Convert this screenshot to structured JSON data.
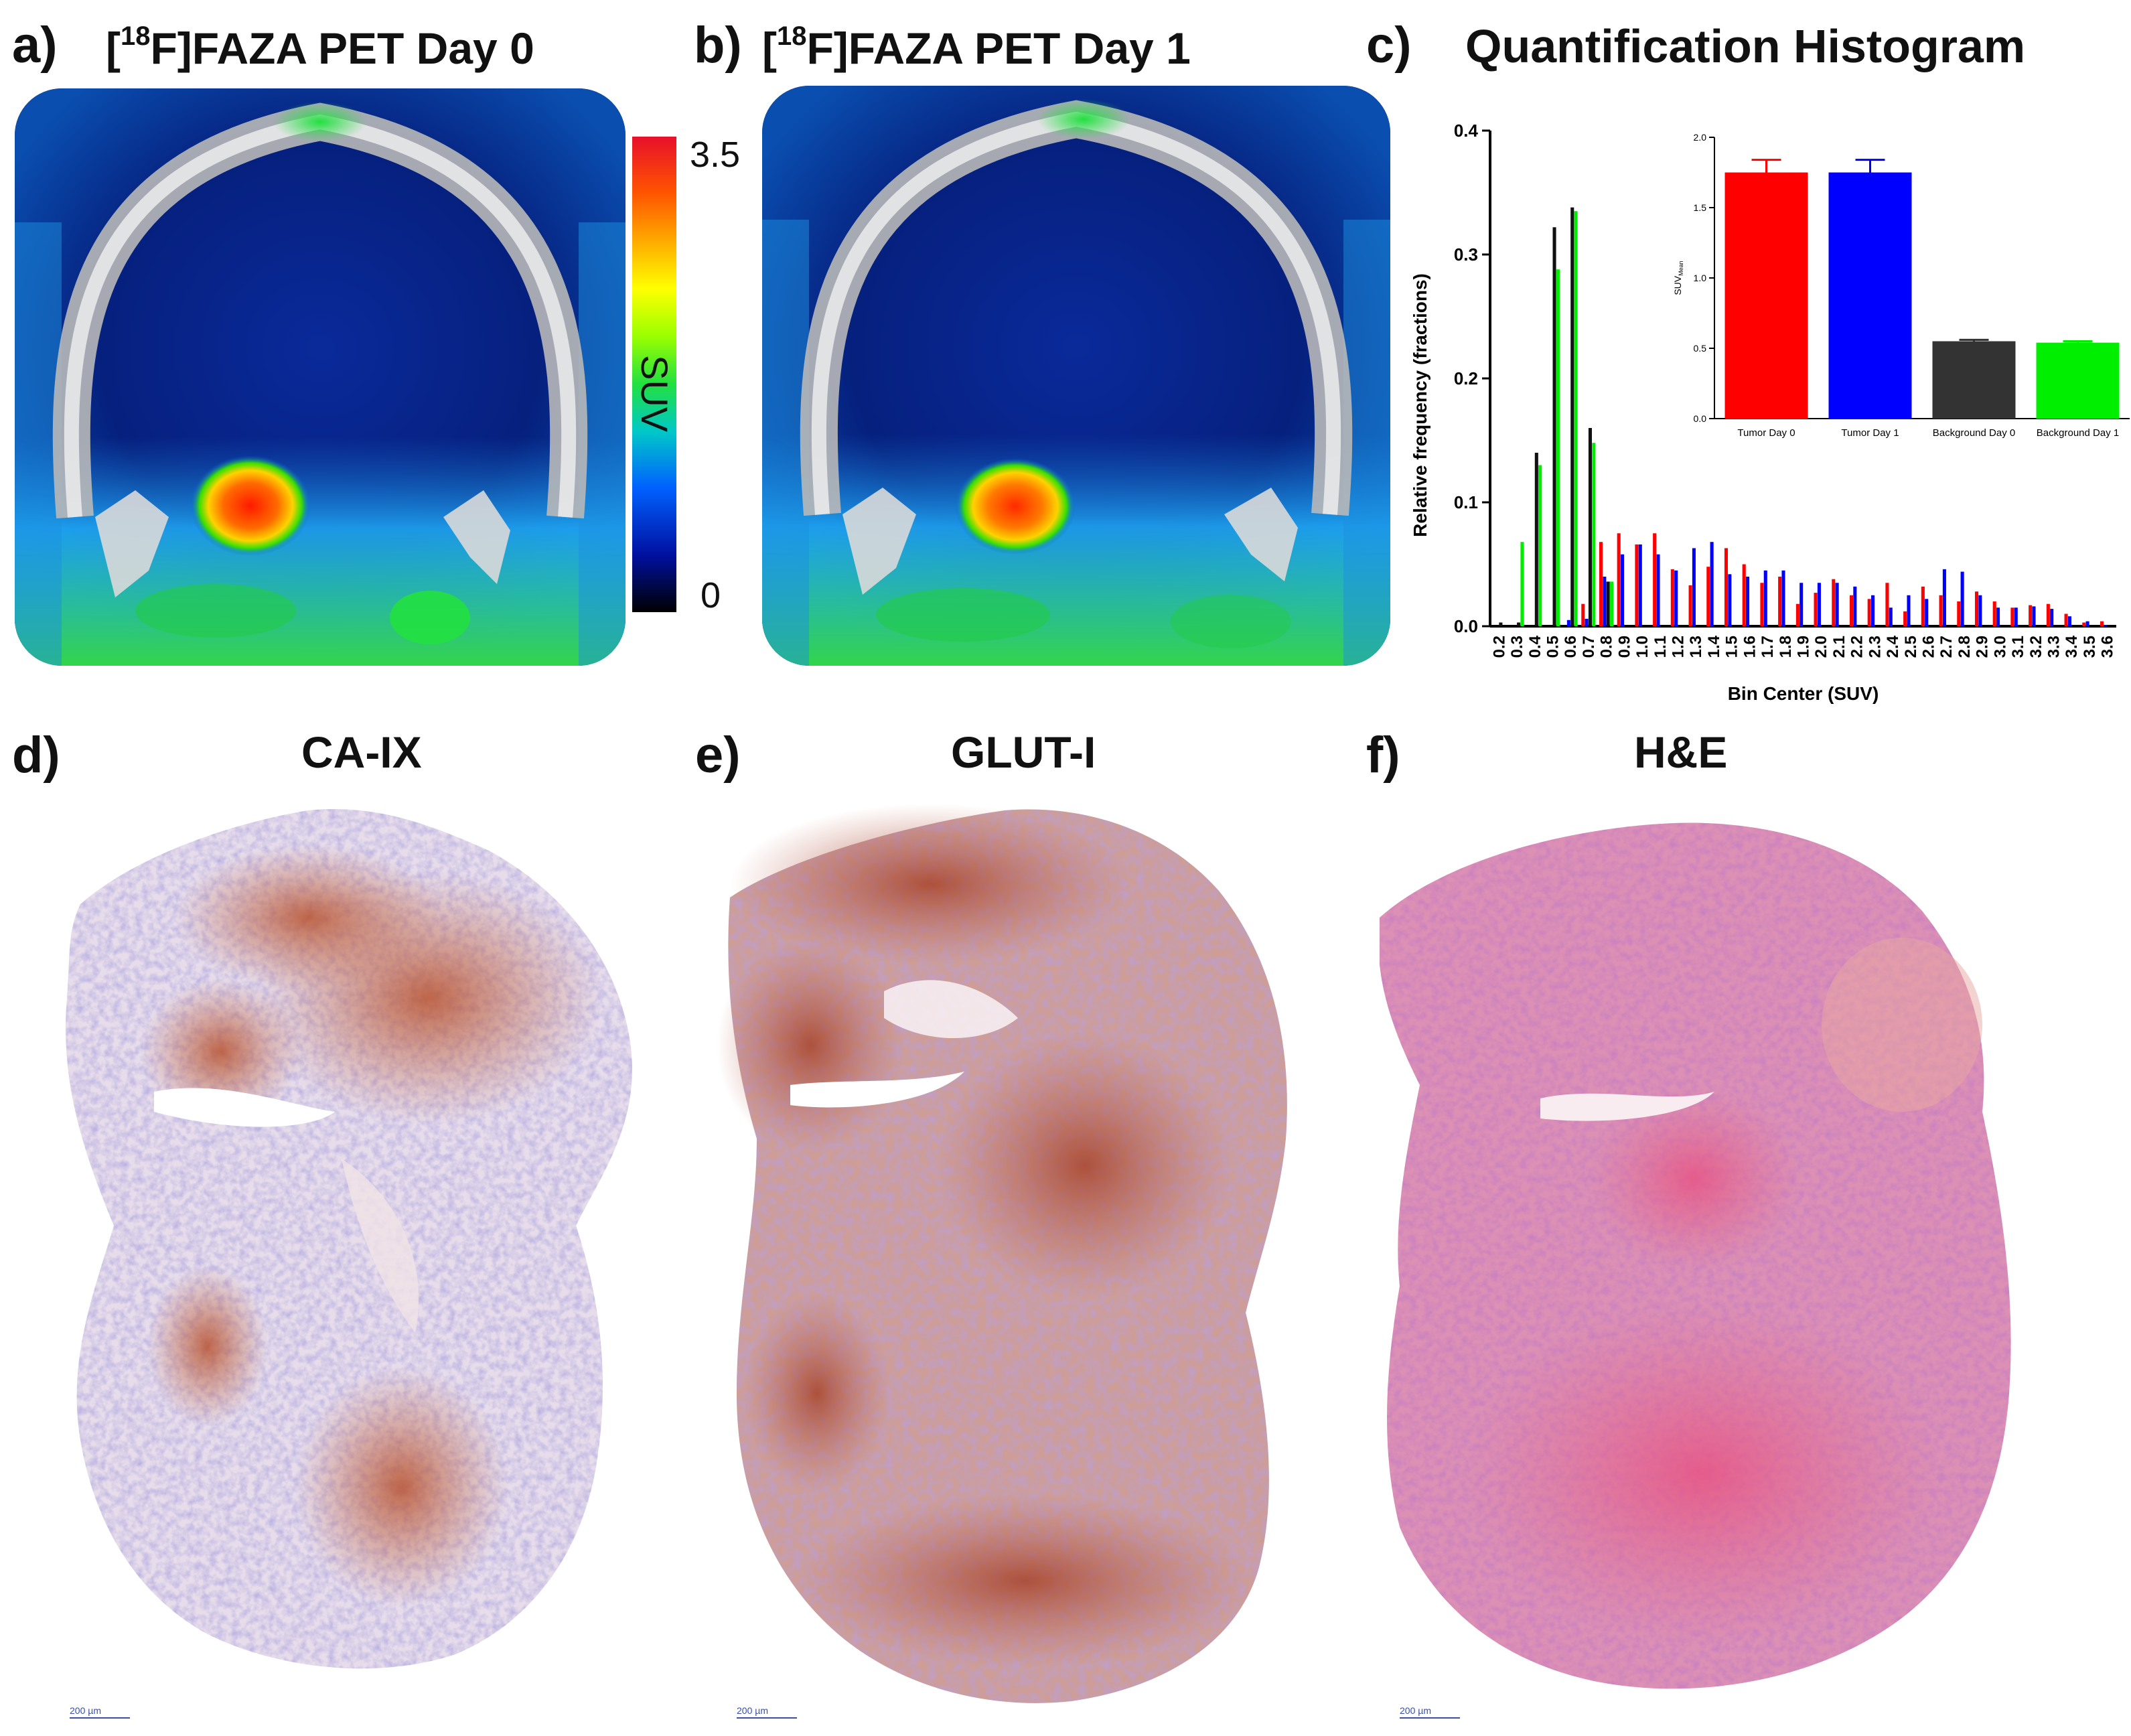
{
  "panels": {
    "a": {
      "letter": "a)",
      "title_pre": "[",
      "title_sup": "18",
      "title_post": "F]FAZA PET Day 0"
    },
    "b": {
      "letter": "b)",
      "title_pre": "[",
      "title_sup": "18",
      "title_post": "F]FAZA  PET Day 1"
    },
    "c": {
      "letter": "c)",
      "title": "Quantification Histogram"
    },
    "d": {
      "letter": "d)",
      "title": "CA-IX",
      "scale": "200 µm"
    },
    "e": {
      "letter": "e)",
      "title": "GLUT-I",
      "scale": "200 µm"
    },
    "f": {
      "letter": "f)",
      "title": "H&E",
      "scale": "200 µm"
    }
  },
  "colorbar": {
    "max_label": "3.5",
    "min_label": "0",
    "axis_label": "SUV"
  },
  "chart_data": [
    {
      "type": "bar",
      "title": "Quantification Histogram",
      "xlabel": "Bin Center (SUV)",
      "ylabel": "Relative frequency (fractions)",
      "ylim": [
        0,
        0.4
      ],
      "yticks": [
        "0.0",
        "0.1",
        "0.2",
        "0.3",
        "0.4"
      ],
      "categories": [
        "0.2",
        "0.3",
        "0.4",
        "0.5",
        "0.6",
        "0.7",
        "0.8",
        "0.9",
        "1.0",
        "1.1",
        "1.2",
        "1.3",
        "1.4",
        "1.5",
        "1.6",
        "1.7",
        "1.8",
        "1.9",
        "2.0",
        "2.1",
        "2.2",
        "2.3",
        "2.4",
        "2.5",
        "2.6",
        "2.7",
        "2.8",
        "2.9",
        "3.0",
        "3.1",
        "3.2",
        "3.3",
        "3.4",
        "3.5",
        "3.6"
      ],
      "series": [
        {
          "name": "Tumor Day 0",
          "color": "#ff0000",
          "values": [
            0,
            0,
            0,
            0,
            0,
            0.018,
            0.068,
            0.075,
            0.066,
            0.075,
            0.046,
            0.033,
            0.048,
            0.063,
            0.05,
            0.035,
            0.04,
            0.018,
            0.027,
            0.038,
            0.025,
            0.022,
            0.035,
            0.012,
            0.032,
            0.025,
            0.02,
            0.028,
            0.02,
            0.015,
            0.017,
            0.018,
            0.01,
            0.003,
            0.004
          ]
        },
        {
          "name": "Tumor Day 1",
          "color": "#0000ff",
          "values": [
            0,
            0,
            0,
            0,
            0.005,
            0.006,
            0.04,
            0.058,
            0.066,
            0.058,
            0.045,
            0.063,
            0.068,
            0.042,
            0.04,
            0.045,
            0.045,
            0.035,
            0.035,
            0.035,
            0.032,
            0.025,
            0.015,
            0.025,
            0.022,
            0.046,
            0.044,
            0.025,
            0.015,
            0.015,
            0.016,
            0.014,
            0.008,
            0.004,
            0.001
          ]
        },
        {
          "name": "Background Day 0",
          "color": "#111111",
          "values": [
            0.003,
            0.003,
            0.14,
            0.322,
            0.338,
            0.16,
            0.036,
            0,
            0,
            0,
            0,
            0,
            0,
            0,
            0,
            0,
            0,
            0,
            0,
            0,
            0,
            0,
            0,
            0,
            0,
            0,
            0,
            0,
            0,
            0,
            0,
            0,
            0,
            0,
            0
          ]
        },
        {
          "name": "Background Day 1",
          "color": "#00ee00",
          "values": [
            0,
            0.068,
            0.13,
            0.288,
            0.335,
            0.148,
            0.036,
            0,
            0,
            0,
            0,
            0,
            0,
            0,
            0,
            0,
            0,
            0,
            0,
            0,
            0,
            0,
            0,
            0,
            0,
            0,
            0,
            0,
            0,
            0,
            0,
            0,
            0,
            0,
            0
          ]
        }
      ]
    },
    {
      "type": "bar",
      "title": "",
      "xlabel": "",
      "ylabel": "SUV",
      "ylabel_sub": "Mean",
      "ylim": [
        0,
        2.0
      ],
      "yticks": [
        "0.0",
        "0.5",
        "1.0",
        "1.5",
        "2.0"
      ],
      "categories": [
        "Tumor Day 0",
        "Tumor Day 1",
        "Background Day 0",
        "Background Day 1"
      ],
      "values": [
        1.75,
        1.75,
        0.55,
        0.54
      ],
      "errors": [
        0.09,
        0.09,
        0.01,
        0.01
      ],
      "colors": [
        "#ff0000",
        "#0000ff",
        "#333333",
        "#00ee00"
      ]
    }
  ]
}
